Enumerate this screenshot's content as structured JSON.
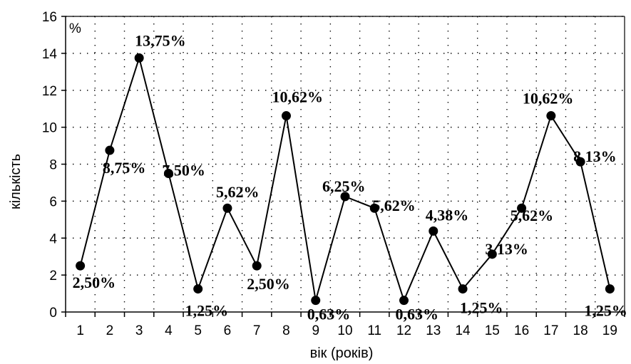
{
  "chart_data": {
    "type": "line",
    "title": "",
    "xlabel": "вік (років)",
    "ylabel": "кількість",
    "unit_label": "%",
    "ylim": [
      0,
      16
    ],
    "y_ticks": [
      "0",
      "2",
      "4",
      "6",
      "8",
      "10",
      "12",
      "14",
      "16"
    ],
    "x": [
      "1",
      "2",
      "3",
      "4",
      "5",
      "6",
      "7",
      "8",
      "9",
      "10",
      "11",
      "12",
      "13",
      "14",
      "15",
      "16",
      "17",
      "18",
      "19"
    ],
    "series": [
      {
        "values": [
          2.5,
          8.75,
          13.75,
          7.5,
          1.25,
          5.62,
          2.5,
          10.62,
          0.63,
          6.25,
          5.62,
          0.63,
          4.38,
          1.25,
          3.13,
          5.62,
          10.62,
          8.13,
          1.25
        ],
        "labels": [
          "2,50%",
          "8,75%",
          "13,75%",
          "7,50%",
          "1,25%",
          "5,62%",
          "2,50%",
          "10,62%",
          "0,63%",
          "6,25%",
          "5,62%",
          "0,63%",
          "4,38%",
          "1,25%",
          "3,13%",
          "5,62%",
          "10,62%",
          "8,13%",
          "1,25%"
        ]
      }
    ],
    "grid": true,
    "colors": {
      "line": "#000000",
      "marker": "#000000",
      "grid": "#000000"
    }
  }
}
